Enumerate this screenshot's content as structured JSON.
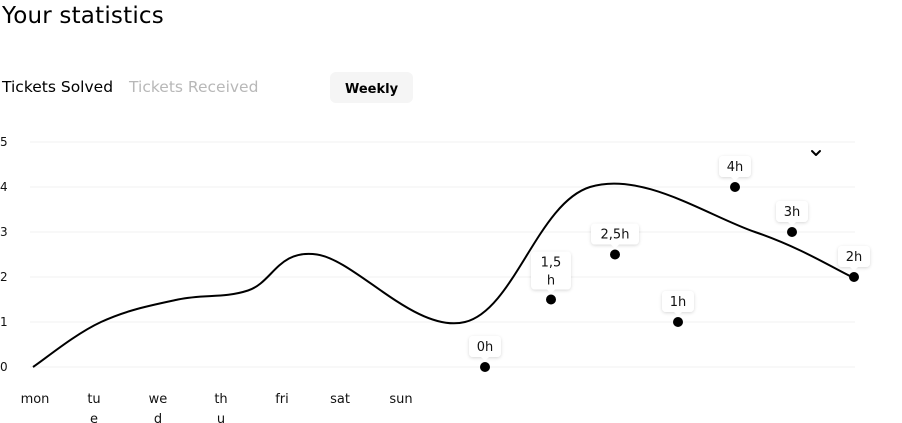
{
  "page": {
    "title": "Your statistics"
  },
  "tabs": [
    {
      "label": "Tickets Solved"
    },
    {
      "label": "Tickets Received"
    }
  ],
  "period": {
    "label": "Weekly"
  },
  "colors": {
    "line": "#000000",
    "grid": "#f0f0f0",
    "tab_inactive": "#b8b8b8",
    "tooltip_bg": "#ffffff"
  },
  "chart_data": {
    "type": "line",
    "ylim": [
      0,
      5
    ],
    "y_ticks": [
      "0",
      "1",
      "2",
      "3",
      "4",
      "5"
    ],
    "x_tick_labels": [
      [
        "mon"
      ],
      [
        "tu",
        "e"
      ],
      [
        "we",
        "d"
      ],
      [
        "th",
        "u"
      ],
      [
        "fri"
      ],
      [
        "sat"
      ],
      [
        "sun"
      ]
    ],
    "line_values": [
      0,
      1.0,
      1.5,
      1.7,
      2.5,
      1.0,
      4.0,
      3.0,
      2.0
    ],
    "points": [
      {
        "y": 0,
        "label": [
          "0h"
        ]
      },
      {
        "y": 1.5,
        "label": [
          "1,5",
          "h"
        ]
      },
      {
        "y": 2.5,
        "label": [
          "2,5h"
        ]
      },
      {
        "y": 1,
        "label": [
          "1h"
        ]
      },
      {
        "y": 4,
        "label": [
          "4h"
        ]
      },
      {
        "y": 3,
        "label": [
          "3h"
        ]
      },
      {
        "y": 2,
        "label": [
          "2h"
        ]
      }
    ]
  }
}
